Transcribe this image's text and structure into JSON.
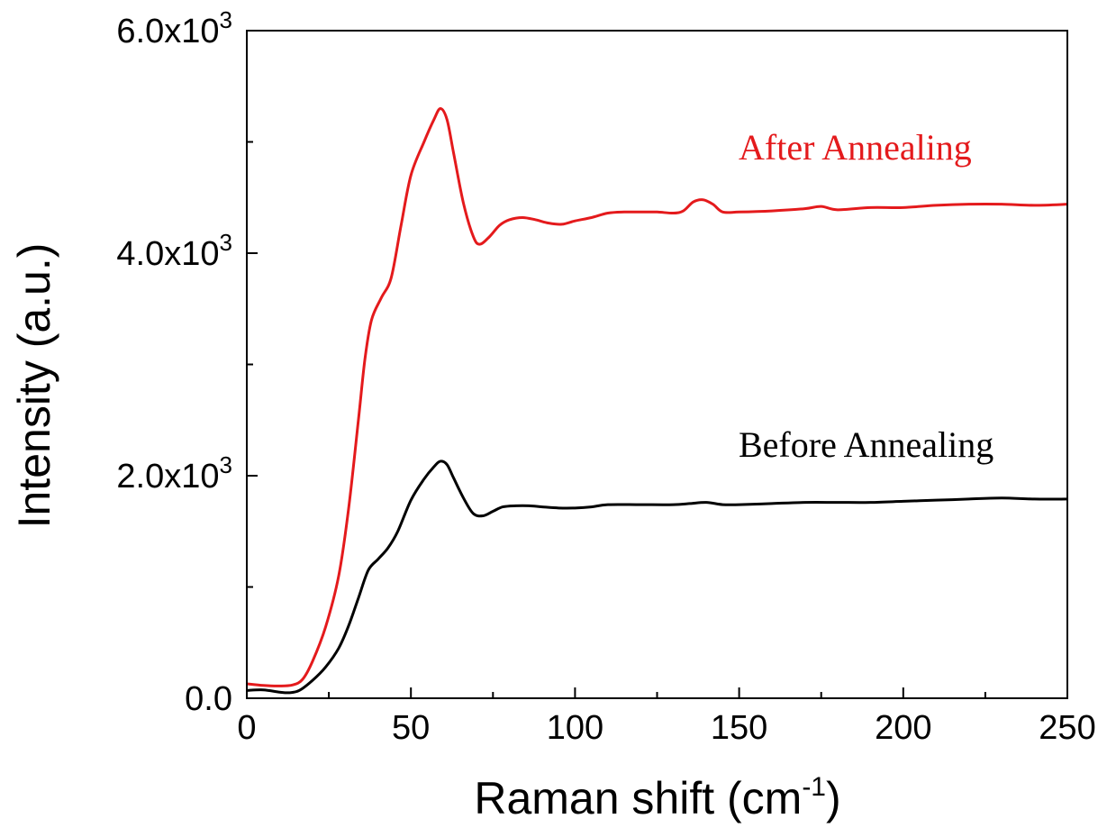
{
  "chart_data": {
    "type": "line",
    "xlabel": "Raman shift (cm",
    "xlabel_sup": "-1",
    "xlabel_end": ")",
    "ylabel": "Intensity (a.u.)",
    "xlim": [
      0,
      250
    ],
    "ylim": [
      0,
      6000
    ],
    "x_ticks": [
      0,
      50,
      100,
      150,
      200,
      250
    ],
    "y_ticks": [
      {
        "value": 0,
        "mantissa": "0.0",
        "base": "",
        "exp": ""
      },
      {
        "value": 2000,
        "mantissa": "2.0",
        "base": "x10",
        "exp": "3"
      },
      {
        "value": 4000,
        "mantissa": "4.0",
        "base": "x10",
        "exp": "3"
      },
      {
        "value": 6000,
        "mantissa": "6.0",
        "base": "x10",
        "exp": "3"
      }
    ],
    "grid": false,
    "series": [
      {
        "name": "After Annealing",
        "color": "#e41a1c",
        "points": [
          [
            0,
            130
          ],
          [
            5,
            115
          ],
          [
            10,
            110
          ],
          [
            14,
            120
          ],
          [
            17,
            170
          ],
          [
            20,
            330
          ],
          [
            24,
            640
          ],
          [
            28,
            1100
          ],
          [
            31,
            1700
          ],
          [
            34,
            2500
          ],
          [
            36,
            3050
          ],
          [
            38,
            3400
          ],
          [
            41,
            3600
          ],
          [
            44,
            3780
          ],
          [
            47,
            4250
          ],
          [
            50,
            4700
          ],
          [
            54,
            5000
          ],
          [
            57,
            5200
          ],
          [
            59,
            5300
          ],
          [
            61,
            5200
          ],
          [
            63,
            4900
          ],
          [
            66,
            4450
          ],
          [
            69,
            4150
          ],
          [
            71,
            4080
          ],
          [
            74,
            4150
          ],
          [
            77,
            4250
          ],
          [
            80,
            4300
          ],
          [
            84,
            4320
          ],
          [
            88,
            4300
          ],
          [
            92,
            4270
          ],
          [
            96,
            4260
          ],
          [
            100,
            4290
          ],
          [
            105,
            4320
          ],
          [
            110,
            4360
          ],
          [
            115,
            4370
          ],
          [
            120,
            4370
          ],
          [
            125,
            4370
          ],
          [
            130,
            4360
          ],
          [
            133,
            4380
          ],
          [
            136,
            4460
          ],
          [
            139,
            4480
          ],
          [
            142,
            4440
          ],
          [
            145,
            4370
          ],
          [
            150,
            4370
          ],
          [
            160,
            4380
          ],
          [
            170,
            4400
          ],
          [
            175,
            4420
          ],
          [
            180,
            4390
          ],
          [
            190,
            4410
          ],
          [
            200,
            4410
          ],
          [
            210,
            4430
          ],
          [
            220,
            4440
          ],
          [
            230,
            4440
          ],
          [
            240,
            4430
          ],
          [
            250,
            4440
          ]
        ]
      },
      {
        "name": "Before Annealing",
        "color": "#000000",
        "points": [
          [
            0,
            70
          ],
          [
            5,
            75
          ],
          [
            10,
            55
          ],
          [
            13,
            50
          ],
          [
            16,
            70
          ],
          [
            20,
            160
          ],
          [
            24,
            280
          ],
          [
            28,
            450
          ],
          [
            31,
            650
          ],
          [
            34,
            900
          ],
          [
            37,
            1150
          ],
          [
            40,
            1250
          ],
          [
            43,
            1350
          ],
          [
            46,
            1500
          ],
          [
            50,
            1780
          ],
          [
            54,
            1970
          ],
          [
            57,
            2080
          ],
          [
            59,
            2130
          ],
          [
            61,
            2100
          ],
          [
            63,
            1980
          ],
          [
            66,
            1800
          ],
          [
            69,
            1660
          ],
          [
            72,
            1640
          ],
          [
            75,
            1680
          ],
          [
            78,
            1720
          ],
          [
            82,
            1730
          ],
          [
            86,
            1730
          ],
          [
            90,
            1720
          ],
          [
            95,
            1710
          ],
          [
            100,
            1710
          ],
          [
            105,
            1720
          ],
          [
            110,
            1740
          ],
          [
            120,
            1740
          ],
          [
            130,
            1740
          ],
          [
            135,
            1750
          ],
          [
            140,
            1760
          ],
          [
            145,
            1740
          ],
          [
            150,
            1740
          ],
          [
            160,
            1750
          ],
          [
            170,
            1760
          ],
          [
            180,
            1760
          ],
          [
            190,
            1760
          ],
          [
            200,
            1770
          ],
          [
            210,
            1780
          ],
          [
            220,
            1790
          ],
          [
            230,
            1800
          ],
          [
            240,
            1790
          ],
          [
            250,
            1790
          ]
        ]
      }
    ],
    "annotations": [
      "After Annealing",
      "Before Annealing"
    ]
  }
}
